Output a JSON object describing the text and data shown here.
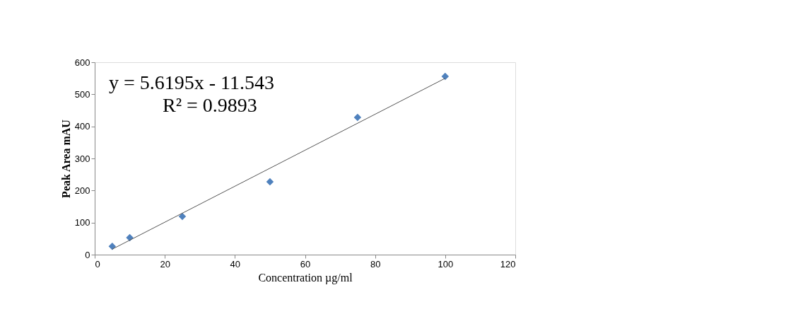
{
  "chart_data": {
    "type": "scatter",
    "xlabel": "Concentration µg/ml",
    "ylabel": "Peak Area mAU",
    "xlim": [
      0,
      120
    ],
    "xticks": [
      0,
      20,
      40,
      60,
      80,
      100,
      120
    ],
    "ylim": [
      0,
      600
    ],
    "yticks": [
      0,
      100,
      200,
      300,
      400,
      500,
      600
    ],
    "grid": false,
    "series": [
      {
        "type": "scatter",
        "marker": "diamond",
        "color": "#4f81bd",
        "x": [
          5,
          10,
          25,
          50,
          75,
          100
        ],
        "values": [
          26,
          53,
          119,
          227,
          428,
          556
        ]
      },
      {
        "type": "line",
        "marker": "none",
        "line_style": "solid",
        "color": "#555555",
        "x": [
          5,
          100
        ],
        "values": [
          17,
          550
        ]
      }
    ],
    "annotations": [
      "y = 5.6195x - 11.543",
      "R² = 0.9893"
    ]
  }
}
